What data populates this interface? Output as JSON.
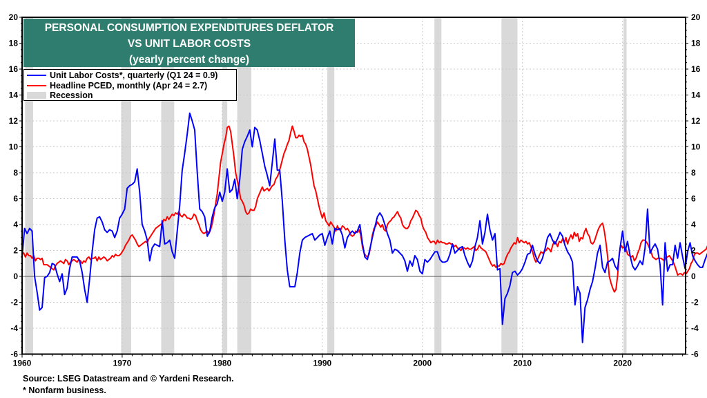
{
  "chart_data": {
    "type": "line",
    "title": "PERSONAL CONSUMPTION EXPENDITURES DEFLATOR",
    "title_line2": "VS UNIT LABOR COSTS",
    "subtitle": "(yearly percent change)",
    "xlabel": "",
    "ylabel": "",
    "xlim": [
      1960,
      2026.3
    ],
    "ylim": [
      -6,
      20
    ],
    "x_ticks": [
      1960,
      1970,
      1980,
      1990,
      2000,
      2010,
      2020
    ],
    "y_ticks": [
      -6,
      -4,
      -2,
      0,
      2,
      4,
      6,
      8,
      10,
      12,
      14,
      16,
      18,
      20
    ],
    "grid": true,
    "legend_position": "top-left",
    "legend": [
      {
        "label": "Unit Labor Costs*, quarterly (Q1 24 = 0.9)",
        "color": "#0000ff",
        "kind": "line"
      },
      {
        "label": "Headline PCED, monthly (Apr 24 = 2.7)",
        "color": "#ff0000",
        "kind": "line"
      },
      {
        "label": "Recession",
        "color": "#d9d9d9",
        "kind": "band"
      }
    ],
    "recessions": [
      [
        1960.3,
        1961.1
      ],
      [
        1969.9,
        1970.9
      ],
      [
        1973.9,
        1975.2
      ],
      [
        1980.0,
        1980.5
      ],
      [
        1981.5,
        1982.9
      ],
      [
        1990.5,
        1991.2
      ],
      [
        2001.2,
        2001.9
      ],
      [
        2007.9,
        2009.5
      ],
      [
        2020.1,
        2020.4
      ]
    ],
    "series": [
      {
        "name": "Unit Labor Costs*, quarterly",
        "color": "#0000ff",
        "start": 1960.0,
        "step": 0.25,
        "values": [
          1.5,
          3.7,
          3.3,
          3.7,
          3.5,
          0,
          -1.2,
          -2.6,
          -2.4,
          -0.1,
          0,
          0.3,
          1,
          0.9,
          0.2,
          -0.4,
          0.2,
          -1.4,
          -0.9,
          0.6,
          1.5,
          1.5,
          1.5,
          1.2,
          0.3,
          -1,
          -2,
          -0.2,
          1.9,
          3.6,
          4.5,
          4.6,
          4.2,
          3.6,
          3.4,
          3.6,
          3.5,
          3,
          3.5,
          4.5,
          4.8,
          5.2,
          6.8,
          7,
          7.1,
          7.3,
          8.3,
          6.5,
          4,
          3.5,
          2.8,
          1.2,
          2.2,
          2.5,
          2.4,
          2.3,
          4.3,
          2.5,
          2.6,
          2.8,
          1.9,
          1.4,
          3.5,
          5.5,
          8.2,
          9.5,
          11,
          12.6,
          12,
          11.3,
          8,
          5.2,
          5,
          4.6,
          3.1,
          3.5,
          4.6,
          5.3,
          5.6,
          6.5,
          5.8,
          6.5,
          8.3,
          6.5,
          6.7,
          7.5,
          6,
          7.5,
          9.8,
          10.4,
          10.8,
          11.3,
          10,
          11.5,
          11.3,
          10.5,
          9.5,
          8.5,
          7.8,
          7,
          8.8,
          10.6,
          8.2,
          8.2,
          5.8,
          2.8,
          0.5,
          -0.8,
          -0.8,
          -0.8,
          0.3,
          1.8,
          2.8,
          3,
          3.1,
          3.2,
          3.3,
          2.8,
          3,
          3.2,
          3.3,
          2.4,
          3,
          3.5,
          2.5,
          3.7,
          3.6,
          3.7,
          3.2,
          2.2,
          3,
          3.3,
          3.5,
          3.3,
          3.5,
          4,
          2.6,
          1.5,
          1.3,
          2.1,
          3,
          3.8,
          4.6,
          4.9,
          4.6,
          4,
          3.3,
          2.8,
          1.8,
          2.1,
          2,
          1.8,
          1.6,
          1.2,
          0.4,
          1.2,
          0.8,
          1.6,
          1.3,
          0.4,
          0.2,
          1.3,
          1.1,
          1.3,
          1.6,
          1.9,
          1.9,
          1.3,
          1.1,
          1.1,
          1.2,
          1.7,
          2.5,
          1.8,
          2,
          2.2,
          2.3,
          1.6,
          1.1,
          0.7,
          1.2,
          2.3,
          3,
          4.3,
          2.5,
          3.4,
          4.8,
          3.6,
          2.8,
          3.3,
          0.5,
          0.6,
          -3.7,
          -1.7,
          -1.3,
          -0.7,
          0.3,
          0.4,
          0.1,
          0.3,
          0.6,
          1.1,
          1.7,
          1.8,
          2.4,
          1.7,
          1.2,
          1,
          1.4,
          2.1,
          3,
          3.3,
          2.8,
          2.5,
          2.9,
          3.4,
          3.1,
          2.4,
          1.9,
          1.6,
          1.1,
          -2.2,
          -0.8,
          -1.3,
          -5.1,
          -2.4,
          -1.8,
          -1,
          -0.4,
          0.6,
          1.8,
          2.4,
          0.7,
          0.3,
          1.1,
          1.2,
          1.4,
          0.8,
          0.5,
          2.2,
          3.5,
          1.9,
          2.7,
          1.6,
          0.8,
          0.5,
          0.8,
          1.2,
          0.9,
          2.2,
          5.2,
          1.8,
          2.2,
          2.5,
          2.1,
          0.9,
          -2.2,
          2.6,
          0.4,
          0.9,
          0.9,
          2.4,
          1.4,
          2.6,
          1.5,
          0.6,
          1.9,
          2.6,
          1.6,
          1.2,
          0.9,
          0.7,
          0.7,
          1.3,
          1.8,
          2,
          2.2,
          2.4,
          1.5,
          1.8,
          2.1,
          2.2,
          1.9,
          2.1,
          2.3,
          3,
          2.5,
          0.9,
          1.3,
          2.6,
          3.6,
          1.5,
          3.8,
          4.1,
          1.1,
          1.8,
          6.6,
          4.8,
          3.9,
          5.9,
          6.4,
          6.2,
          5.8,
          5,
          4.3,
          3.3,
          3,
          2.2,
          1.8,
          1.3,
          0.9
        ]
      },
      {
        "name": "Headline PCED, monthly",
        "color": "#ff0000",
        "start": 1960.0,
        "step": 0.1667,
        "values": [
          1.8,
          1.8,
          1.5,
          1.8,
          1.6,
          1.6,
          1.4,
          1.6,
          1.2,
          1.4,
          1.4,
          1.3,
          1.4,
          0.9,
          0.9,
          0.9,
          0.8,
          0.7,
          0.6,
          0.5,
          0.8,
          1,
          1.1,
          1.2,
          1.1,
          1,
          1.3,
          1.2,
          0.9,
          1.1,
          1.2,
          1.3,
          1.2,
          1.1,
          1.3,
          1.2,
          1,
          1.2,
          1.1,
          1.4,
          1.5,
          1.3,
          1.4,
          1.4,
          1.5,
          1.2,
          1.5,
          1.3,
          1.4,
          1.5,
          1.4,
          1.2,
          1.3,
          1.4,
          1.6,
          1.5,
          1.7,
          1.6,
          1.6,
          1.7,
          1.9,
          2.1,
          2.4,
          2.6,
          2.8,
          3.1,
          3.2,
          3,
          2.8,
          2.5,
          2.3,
          2.4,
          2.5,
          2.6,
          2.7,
          2.6,
          2.9,
          3.1,
          3.3,
          3.5,
          3.7,
          3.8,
          3.9,
          4,
          4.1,
          4.4,
          4.3,
          4.6,
          4.4,
          4.6,
          4.8,
          4.7,
          4.9,
          4.8,
          5,
          4.7,
          4.6,
          4.8,
          4.7,
          4.5,
          4.5,
          4.4,
          4.5,
          4.8,
          4.7,
          4.3,
          4,
          3.6,
          3.4,
          3.3,
          3.4,
          3.5,
          3.3,
          3.6,
          4.1,
          4.8,
          5.6,
          6.4,
          7.6,
          8.8,
          9.5,
          10.2,
          10.7,
          11.5,
          11.6,
          11.2,
          10.2,
          9.2,
          8,
          7.4,
          6.8,
          6,
          5.8,
          5.5,
          5,
          4.8,
          4.9,
          5.2,
          5.1,
          5.1,
          5.4,
          6,
          6.3,
          6.6,
          6.9,
          6.6,
          6.7,
          6.8,
          6.6,
          6.8,
          7,
          7.1,
          7.5,
          7.7,
          8,
          8.5,
          9,
          9.5,
          9.8,
          10.2,
          10.5,
          11.1,
          11.6,
          11.2,
          10.7,
          10.7,
          10.9,
          10.8,
          10.9,
          10.4,
          10.2,
          9.8,
          9.2,
          8.6,
          7.8,
          7,
          6.6,
          6,
          5.4,
          4.9,
          4.5,
          4.9,
          4.3,
          4.1,
          3.9,
          4.2,
          4,
          3.8,
          3.5,
          3.9,
          3.6,
          3.6,
          3.9,
          3.8,
          3.6,
          3.7,
          3.5,
          3.2,
          3.1,
          3.2,
          3.5,
          3.4,
          3.6,
          3.2,
          2.3,
          1.8,
          1.6,
          1.5,
          1.7,
          2.4,
          3.2,
          3.7,
          3.9,
          4.2,
          4,
          3.8,
          4,
          3.6,
          3.5,
          4,
          4.2,
          4.3,
          4.5,
          4.6,
          4.8,
          5,
          4.7,
          4.5,
          4,
          3.8,
          3.7,
          3.7,
          3.9,
          4.3,
          4.5,
          4.8,
          5.1,
          5,
          4.7,
          4.5,
          3.9,
          3.6,
          3.4,
          3,
          2.8,
          2.6,
          2.7,
          2.7,
          2.5,
          2.8,
          2.6,
          2.7,
          2.6,
          2.6,
          2.5,
          2.5,
          2.6,
          2.5,
          2.5,
          2.3,
          2.4,
          2.2,
          2.1,
          2,
          2.2,
          2.2,
          2.1,
          2.2,
          2.1,
          2.1,
          2.2,
          2.3,
          2,
          2.1,
          2.4,
          2.2,
          2.1,
          2,
          1.9,
          1.6,
          1.3,
          1,
          0.8,
          0.9,
          0.7,
          0.8,
          0.8,
          1,
          0.9,
          1,
          1.4,
          1.7,
          1.9,
          2.2,
          2.4,
          2.6,
          2.5,
          3,
          2.6,
          2.8,
          2.7,
          2.6,
          2.7,
          2.5,
          2.6,
          2.3,
          1.9,
          1.4,
          1.1,
          1.3,
          1.6,
          1.9,
          1.8,
          1.9,
          2,
          2.2,
          2.1,
          1.9,
          2.4,
          2.7,
          2.6,
          2.3,
          2.7,
          2.6,
          2.9,
          2.6,
          3,
          2.5,
          2.9,
          3.2,
          2.9,
          3.4,
          3.1,
          3.3,
          2.7,
          3,
          2.9,
          3.4,
          3.7,
          3.3,
          3.1,
          2.6,
          2.5,
          2.7,
          3.1,
          3.5,
          3.8,
          4,
          4.1,
          3.5,
          2.6,
          1.5,
          0,
          -0.5,
          -0.9,
          -1.2,
          -1,
          0.1,
          1.8,
          2.4,
          2.2,
          2.3,
          2.1,
          1.7,
          1.6,
          1.5,
          1.6,
          1.2,
          1.4,
          1.8,
          2.1,
          2.6,
          2.8,
          2.8,
          2.7,
          2.5,
          2.2,
          1.9,
          1.5,
          1.4,
          1.3,
          1.4,
          1.4,
          1.4,
          1.3,
          1.2,
          1.5,
          1.5,
          1.6,
          1.4,
          1.2,
          0.9,
          0.5,
          0.1,
          0.2,
          0.2,
          0.1,
          0.3,
          0.2,
          0.4,
          0.6,
          1,
          1.2,
          1.7,
          1.8,
          1.8,
          1.7,
          1.8,
          1.9,
          2,
          2.1,
          2.4,
          2.3,
          2.1,
          1.9,
          1.5,
          1.4,
          1.6,
          1.5,
          1.4,
          1.4,
          1.5,
          1.3,
          1.5,
          1.2,
          1.6,
          1.3,
          0.5,
          0.6,
          1,
          1.3,
          1.2,
          1.5,
          2.5,
          3.9,
          4,
          4.4,
          5.2,
          5.8,
          6.1,
          6.4,
          6.6,
          6.9,
          7,
          6.6,
          6.4,
          6.2,
          5.5,
          4.8,
          4.6,
          4.2,
          3.6,
          3.1,
          3.2,
          3.3,
          3,
          2.6,
          2.5,
          2.6,
          2.7
        ]
      }
    ]
  },
  "footer": {
    "source": "Source: LSEG Datastream and © Yardeni Research.",
    "note": "* Nonfarm business."
  }
}
